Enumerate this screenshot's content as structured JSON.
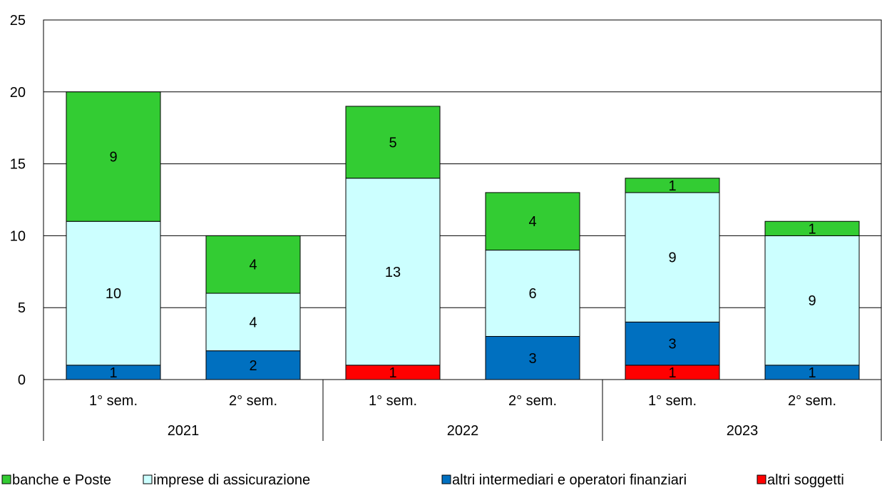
{
  "chart_data": {
    "type": "bar",
    "stacked": true,
    "title": "",
    "xlabel": "",
    "ylabel": "",
    "ylim": [
      0,
      25
    ],
    "yticks": [
      0,
      5,
      10,
      15,
      20,
      25
    ],
    "grid": true,
    "legend_position": "bottom",
    "categories": [
      "1° sem.",
      "2° sem.",
      "1° sem.",
      "2° sem.",
      "1° sem.",
      "2° sem."
    ],
    "groups": [
      {
        "label": "2021",
        "categories": [
          "1° sem.",
          "2° sem."
        ]
      },
      {
        "label": "2022",
        "categories": [
          "1° sem.",
          "2° sem."
        ]
      },
      {
        "label": "2023",
        "categories": [
          "1° sem.",
          "2° sem."
        ]
      }
    ],
    "series": [
      {
        "name": "altri soggetti",
        "color": "#FF0000",
        "values": [
          0,
          0,
          1,
          0,
          1,
          0
        ]
      },
      {
        "name": "altri intermediari e operatori finanziari",
        "color": "#0070C0",
        "values": [
          1,
          2,
          0,
          3,
          3,
          1
        ]
      },
      {
        "name": "imprese di assicurazione",
        "color": "#CCFFFF",
        "values": [
          10,
          4,
          13,
          6,
          9,
          9
        ]
      },
      {
        "name": "banche e Poste",
        "color": "#33CC33",
        "values": [
          9,
          4,
          5,
          4,
          1,
          1
        ]
      }
    ],
    "legend_order": [
      "banche e Poste",
      "imprese di assicurazione",
      "altri intermediari e operatori finanziari",
      "altri soggetti"
    ]
  }
}
